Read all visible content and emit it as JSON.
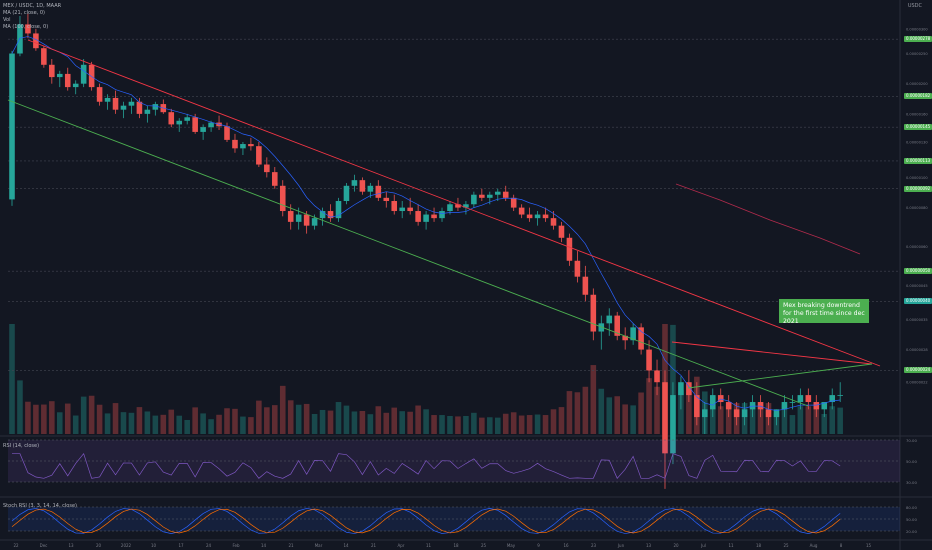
{
  "header": {
    "symbol_line": "MEX / USDC, 1D, MAAR",
    "currency": "USDC"
  },
  "indicators": [
    "MA (21, close, 0)",
    "Vol",
    "MA (100, close, 0)"
  ],
  "rsi_label": "RSI (14, close)",
  "stoch_label": "Stoch RSI (3, 3, 14, 14, close)",
  "annotation": {
    "line1": "Mex breaking downtrend",
    "line2": "for the first time since dec 2021"
  },
  "colors": {
    "background": "#131722",
    "up": "#26a69a",
    "down": "#ef5350",
    "resistance": "#f23645",
    "support": "#4caf50",
    "ma21": "#2962ff",
    "ma100": "#b22b4c",
    "rsi": "#7e57c2",
    "stoch_k": "#2962ff",
    "stoch_d": "#ff6d00"
  },
  "price_tags": [
    {
      "label": "0.00000278",
      "color": "#4caf50"
    },
    {
      "label": "0.00000182",
      "color": "#4caf50"
    },
    {
      "label": "0.00000145",
      "color": "#4caf50"
    },
    {
      "label": "0.00000113",
      "color": "#4caf50"
    },
    {
      "label": "0.00000092",
      "color": "#4caf50"
    },
    {
      "label": "0.00000050",
      "color": "#4caf50"
    },
    {
      "label": "0.00000040",
      "color": "#26a69a"
    },
    {
      "label": "0.00000024",
      "color": "#4caf50"
    }
  ],
  "chart_data": {
    "type": "candlestick",
    "x_ticks": [
      "22",
      "Dec",
      "13",
      "20",
      "2022",
      "10",
      "17",
      "24",
      "Feb",
      "14",
      "21",
      "Mar",
      "14",
      "21",
      "Apr",
      "11",
      "18",
      "25",
      "May",
      "9",
      "16",
      "23",
      "Jun",
      "13",
      "20",
      "Jul",
      "11",
      "18",
      "25",
      "Aug",
      "8",
      "15"
    ],
    "y_axis": {
      "scale": "log",
      "range": [
        1.5e-07,
        3.5e-06
      ]
    },
    "candles": [
      [
        8.5e-07,
        2.55e-06,
        8.1e-07,
        2.5e-06
      ],
      [
        2.5e-06,
        3.3e-06,
        2.45e-06,
        3.1e-06
      ],
      [
        3.1e-06,
        3.35e-06,
        2.8e-06,
        2.9e-06
      ],
      [
        2.9e-06,
        3e-06,
        2.55e-06,
        2.6e-06
      ],
      [
        2.6e-06,
        2.65e-06,
        2.25e-06,
        2.3e-06
      ],
      [
        2.3e-06,
        2.4e-06,
        2e-06,
        2.1e-06
      ],
      [
        2.1e-06,
        2.2e-06,
        1.95e-06,
        2.15e-06
      ],
      [
        2.15e-06,
        2.25e-06,
        1.9e-06,
        1.95e-06
      ],
      [
        1.95e-06,
        2.05e-06,
        1.85e-06,
        2e-06
      ],
      [
        2e-06,
        2.4e-06,
        1.95e-06,
        2.3e-06
      ],
      [
        2.3e-06,
        2.35e-06,
        1.9e-06,
        1.95e-06
      ],
      [
        1.95e-06,
        2e-06,
        1.7e-06,
        1.75e-06
      ],
      [
        1.75e-06,
        1.85e-06,
        1.65e-06,
        1.8e-06
      ],
      [
        1.8e-06,
        1.9e-06,
        1.6e-06,
        1.65e-06
      ],
      [
        1.65e-06,
        1.75e-06,
        1.55e-06,
        1.7e-06
      ],
      [
        1.7e-06,
        1.8e-06,
        1.6e-06,
        1.75e-06
      ],
      [
        1.75e-06,
        1.8e-06,
        1.55e-06,
        1.6e-06
      ],
      [
        1.6e-06,
        1.7e-06,
        1.5e-06,
        1.65e-06
      ],
      [
        1.65e-06,
        1.75e-06,
        1.58e-06,
        1.72e-06
      ],
      [
        1.72e-06,
        1.78e-06,
        1.6e-06,
        1.62e-06
      ],
      [
        1.62e-06,
        1.66e-06,
        1.45e-06,
        1.48e-06
      ],
      [
        1.48e-06,
        1.55e-06,
        1.4e-06,
        1.52e-06
      ],
      [
        1.52e-06,
        1.6e-06,
        1.48e-06,
        1.56e-06
      ],
      [
        1.56e-06,
        1.6e-06,
        1.38e-06,
        1.4e-06
      ],
      [
        1.4e-06,
        1.48e-06,
        1.32e-06,
        1.45e-06
      ],
      [
        1.45e-06,
        1.52e-06,
        1.4e-06,
        1.5e-06
      ],
      [
        1.5e-06,
        1.58e-06,
        1.42e-06,
        1.46e-06
      ],
      [
        1.46e-06,
        1.5e-06,
        1.3e-06,
        1.32e-06
      ],
      [
        1.32e-06,
        1.38e-06,
        1.2e-06,
        1.24e-06
      ],
      [
        1.24e-06,
        1.3e-06,
        1.18e-06,
        1.28e-06
      ],
      [
        1.28e-06,
        1.34e-06,
        1.22e-06,
        1.26e-06
      ],
      [
        1.26e-06,
        1.3e-06,
        1.08e-06,
        1.1e-06
      ],
      [
        1.1e-06,
        1.16e-06,
        1e-06,
        1.04e-06
      ],
      [
        1.04e-06,
        1.08e-06,
        9.2e-07,
        9.4e-07
      ],
      [
        9.4e-07,
        9.8e-07,
        7.5e-07,
        7.8e-07
      ],
      [
        7.8e-07,
        8.2e-07,
        6.8e-07,
        7.2e-07
      ],
      [
        7.2e-07,
        8e-07,
        6.8e-07,
        7.6e-07
      ],
      [
        7.6e-07,
        7.8e-07,
        6.6e-07,
        7e-07
      ],
      [
        7e-07,
        7.6e-07,
        6.8e-07,
        7.4e-07
      ],
      [
        7.4e-07,
        8e-07,
        7e-07,
        7.8e-07
      ],
      [
        7.8e-07,
        8.2e-07,
        7.2e-07,
        7.4e-07
      ],
      [
        7.4e-07,
        8.6e-07,
        7.2e-07,
        8.4e-07
      ],
      [
        8.4e-07,
        9.6e-07,
        8.2e-07,
        9.4e-07
      ],
      [
        9.4e-07,
        1.02e-06,
        9e-07,
        9.8e-07
      ],
      [
        9.8e-07,
        1e-06,
        8.8e-07,
        9e-07
      ],
      [
        9e-07,
        9.6e-07,
        8.6e-07,
        9.4e-07
      ],
      [
        9.4e-07,
        9.8e-07,
        8.4e-07,
        8.6e-07
      ],
      [
        8.6e-07,
        9e-07,
        8e-07,
        8.4e-07
      ],
      [
        8.4e-07,
        8.8e-07,
        7.6e-07,
        7.8e-07
      ],
      [
        7.8e-07,
        8.4e-07,
        7.4e-07,
        8e-07
      ],
      [
        8e-07,
        8.6e-07,
        7.6e-07,
        7.8e-07
      ],
      [
        7.8e-07,
        8.2e-07,
        7e-07,
        7.2e-07
      ],
      [
        7.2e-07,
        7.8e-07,
        6.8e-07,
        7.6e-07
      ],
      [
        7.6e-07,
        8e-07,
        7.2e-07,
        7.4e-07
      ],
      [
        7.4e-07,
        8e-07,
        7.2e-07,
        7.8e-07
      ],
      [
        7.8e-07,
        8.4e-07,
        7.6e-07,
        8.2e-07
      ],
      [
        8.2e-07,
        8.6e-07,
        7.8e-07,
        8e-07
      ],
      [
        8e-07,
        8.4e-07,
        7.6e-07,
        8.2e-07
      ],
      [
        8.2e-07,
        9e-07,
        8e-07,
        8.8e-07
      ],
      [
        8.8e-07,
        9.2e-07,
        8.4e-07,
        8.6e-07
      ],
      [
        8.6e-07,
        9e-07,
        8.2e-07,
        8.8e-07
      ],
      [
        8.8e-07,
        9.2e-07,
        8.4e-07,
        9e-07
      ],
      [
        9e-07,
        9.4e-07,
        8.4e-07,
        8.6e-07
      ],
      [
        8.6e-07,
        8.8e-07,
        7.8e-07,
        8e-07
      ],
      [
        8e-07,
        8.2e-07,
        7.4e-07,
        7.6e-07
      ],
      [
        7.6e-07,
        8e-07,
        7.2e-07,
        7.4e-07
      ],
      [
        7.4e-07,
        7.8e-07,
        7e-07,
        7.6e-07
      ],
      [
        7.6e-07,
        8e-07,
        7.2e-07,
        7.4e-07
      ],
      [
        7.4e-07,
        7.8e-07,
        6.8e-07,
        7e-07
      ],
      [
        7e-07,
        7.2e-07,
        6.2e-07,
        6.4e-07
      ],
      [
        6.4e-07,
        6.6e-07,
        5.2e-07,
        5.4e-07
      ],
      [
        5.4e-07,
        5.8e-07,
        4.6e-07,
        4.8e-07
      ],
      [
        4.8e-07,
        5.2e-07,
        4e-07,
        4.2e-07
      ],
      [
        4.2e-07,
        4.4e-07,
        3e-07,
        3.2e-07
      ],
      [
        3.2e-07,
        3.6e-07,
        2.8e-07,
        3.4e-07
      ],
      [
        3.4e-07,
        3.8e-07,
        3.1e-07,
        3.6e-07
      ],
      [
        3.6e-07,
        3.7e-07,
        3e-07,
        3.1e-07
      ],
      [
        3.1e-07,
        3.3e-07,
        2.8e-07,
        3e-07
      ],
      [
        3e-07,
        3.4e-07,
        2.9e-07,
        3.3e-07
      ],
      [
        3.3e-07,
        3.4e-07,
        2.7e-07,
        2.8e-07
      ],
      [
        2.8e-07,
        3e-07,
        2.2e-07,
        2.4e-07
      ],
      [
        2.4e-07,
        2.6e-07,
        2e-07,
        2.2e-07
      ],
      [
        2.2e-07,
        2.4e-07,
        1e-07,
        1.3e-07
      ],
      [
        1.3e-07,
        2.2e-07,
        1.2e-07,
        2e-07
      ],
      [
        2e-07,
        2.3e-07,
        1.8e-07,
        2.2e-07
      ],
      [
        2.2e-07,
        2.4e-07,
        1.9e-07,
        2e-07
      ],
      [
        2e-07,
        2.2e-07,
        1.6e-07,
        1.7e-07
      ],
      [
        1.7e-07,
        1.9e-07,
        1.5e-07,
        1.8e-07
      ],
      [
        1.8e-07,
        2.1e-07,
        1.7e-07,
        2e-07
      ],
      [
        2e-07,
        2.1e-07,
        1.8e-07,
        1.9e-07
      ],
      [
        1.9e-07,
        2e-07,
        1.7e-07,
        1.8e-07
      ],
      [
        1.8e-07,
        1.9e-07,
        1.6e-07,
        1.7e-07
      ],
      [
        1.7e-07,
        1.9e-07,
        1.6e-07,
        1.8e-07
      ],
      [
        1.8e-07,
        2e-07,
        1.7e-07,
        1.9e-07
      ],
      [
        1.9e-07,
        2e-07,
        1.7e-07,
        1.8e-07
      ],
      [
        1.8e-07,
        1.9e-07,
        1.6e-07,
        1.7e-07
      ],
      [
        1.7e-07,
        1.8e-07,
        1.6e-07,
        1.8e-07
      ],
      [
        1.8e-07,
        2e-07,
        1.7e-07,
        1.9e-07
      ],
      [
        1.9e-07,
        2e-07,
        1.8e-07,
        1.9e-07
      ],
      [
        1.9e-07,
        2.1e-07,
        1.8e-07,
        2e-07
      ],
      [
        2e-07,
        2.1e-07,
        1.8e-07,
        1.9e-07
      ],
      [
        1.9e-07,
        2e-07,
        1.7e-07,
        1.8e-07
      ],
      [
        1.8e-07,
        1.9e-07,
        1.7e-07,
        1.9e-07
      ],
      [
        1.9e-07,
        2.1e-07,
        1.8e-07,
        2e-07
      ],
      [
        2e-07,
        2.2e-07,
        1.9e-07,
        2e-07
      ]
    ],
    "trendlines": [
      {
        "name": "Downtrend resistance"
      },
      {
        "name": "Channel support"
      },
      {
        "name": "Triangle upper"
      },
      {
        "name": "Triangle lower"
      }
    ],
    "rsi_levels": [
      70,
      50,
      30
    ],
    "stoch_levels": [
      80,
      50,
      20
    ]
  }
}
